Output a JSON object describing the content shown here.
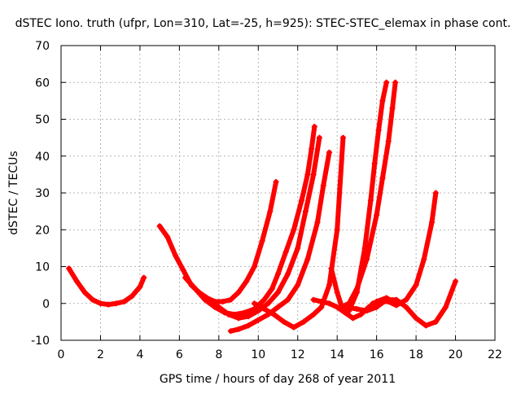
{
  "chart_data": {
    "type": "scatter",
    "title": "dSTEC Iono. truth (ufpr, Lon=310, Lat=-25, h=925): STEC-STEC_elemax in phase cont.",
    "xlabel": "GPS time / hours of day 268 of year 2011",
    "ylabel": "dSTEC  / TECUs",
    "xlim": [
      0,
      22
    ],
    "ylim": [
      -10,
      70
    ],
    "x_ticks": [
      "0",
      "2",
      "4",
      "6",
      "8",
      "10",
      "12",
      "14",
      "16",
      "18",
      "20",
      "22"
    ],
    "y_ticks": [
      "-10",
      "0",
      "10",
      "20",
      "30",
      "40",
      "50",
      "60",
      "70"
    ],
    "grid": true,
    "marker": "+",
    "color": "#ff0000",
    "series": [
      {
        "x": [
          0.4,
          0.8,
          1.2,
          1.6,
          2.0,
          2.4,
          2.8,
          3.2,
          3.6,
          4.0,
          4.2
        ],
        "y": [
          9.5,
          6,
          3,
          1,
          0,
          -0.3,
          0,
          0.5,
          2,
          4.5,
          7
        ]
      },
      {
        "x": [
          5.0,
          5.4,
          5.8,
          6.2,
          6.6,
          7.0,
          7.4,
          7.8,
          8.2,
          8.6,
          9.0,
          9.4,
          9.8,
          10.2,
          10.6,
          10.9
        ],
        "y": [
          21,
          18,
          13,
          9,
          5,
          3,
          1.5,
          0.5,
          0.5,
          1,
          3,
          6,
          10,
          17,
          25,
          33
        ]
      },
      {
        "x": [
          6.3,
          6.8,
          7.3,
          7.8,
          8.3,
          8.8,
          9.3,
          9.8,
          10.3,
          10.7,
          11.0,
          11.4,
          11.8,
          12.2,
          12.5,
          12.7,
          12.85
        ],
        "y": [
          7,
          4,
          1,
          -1,
          -2.5,
          -3,
          -2.5,
          -1.5,
          1,
          4,
          8,
          14,
          20,
          28,
          35,
          42,
          48
        ]
      },
      {
        "x": [
          7.5,
          8.0,
          8.5,
          9.0,
          9.5,
          10.0,
          10.5,
          11.0,
          11.5,
          12.0,
          12.4,
          12.8,
          13.1
        ],
        "y": [
          1,
          -1,
          -3,
          -4,
          -3.5,
          -2,
          0,
          3,
          8,
          15,
          25,
          35,
          45
        ]
      },
      {
        "x": [
          8.6,
          9.0,
          9.5,
          10.0,
          10.5,
          11.0,
          11.5,
          12.0,
          12.5,
          13.0,
          13.3,
          13.6
        ],
        "y": [
          -7.5,
          -7,
          -6,
          -4.5,
          -3,
          -1,
          1,
          5,
          12,
          22,
          32,
          41
        ]
      },
      {
        "x": [
          9.8,
          10.3,
          10.8,
          11.3,
          11.8,
          12.3,
          12.8,
          13.2,
          13.6,
          14.0,
          14.3
        ],
        "y": [
          0,
          -1.5,
          -3,
          -5,
          -6.5,
          -5,
          -3,
          -1,
          5,
          20,
          45
        ]
      },
      {
        "x": [
          13.7,
          14.0,
          14.3,
          14.6,
          15.0,
          15.4,
          15.7,
          15.9,
          16.1,
          16.3,
          16.5
        ],
        "y": [
          9.5,
          3,
          -2,
          -2,
          3,
          15,
          28,
          38,
          47,
          55,
          60
        ]
      },
      {
        "x": [
          14.2,
          14.6,
          15.0,
          15.5,
          16.0,
          16.3,
          16.6,
          16.8,
          16.95
        ],
        "y": [
          -1,
          0,
          4,
          12,
          24,
          34,
          44,
          53,
          60
        ]
      },
      {
        "x": [
          12.8,
          13.2,
          13.6,
          14.0,
          14.4,
          14.8,
          15.2,
          15.6,
          16.0,
          16.5,
          17.0
        ],
        "y": [
          1,
          0.5,
          0,
          -1,
          -2.5,
          -4,
          -3,
          -1,
          0.5,
          1.5,
          0
        ]
      },
      {
        "x": [
          15.8,
          16.2,
          16.6,
          17.0,
          17.5,
          18.0,
          18.4,
          18.8,
          19.0
        ],
        "y": [
          0,
          0.5,
          0.5,
          -0.5,
          1,
          5,
          12,
          22,
          30
        ]
      },
      {
        "x": [
          14.4,
          15.0,
          15.5,
          16.0,
          16.5,
          17.0,
          17.5,
          18.0,
          18.5,
          19.0,
          19.5,
          20.0
        ],
        "y": [
          -1,
          -1.5,
          -2,
          -1,
          1,
          1,
          -1,
          -4,
          -6,
          -5,
          -1,
          6
        ]
      }
    ]
  }
}
